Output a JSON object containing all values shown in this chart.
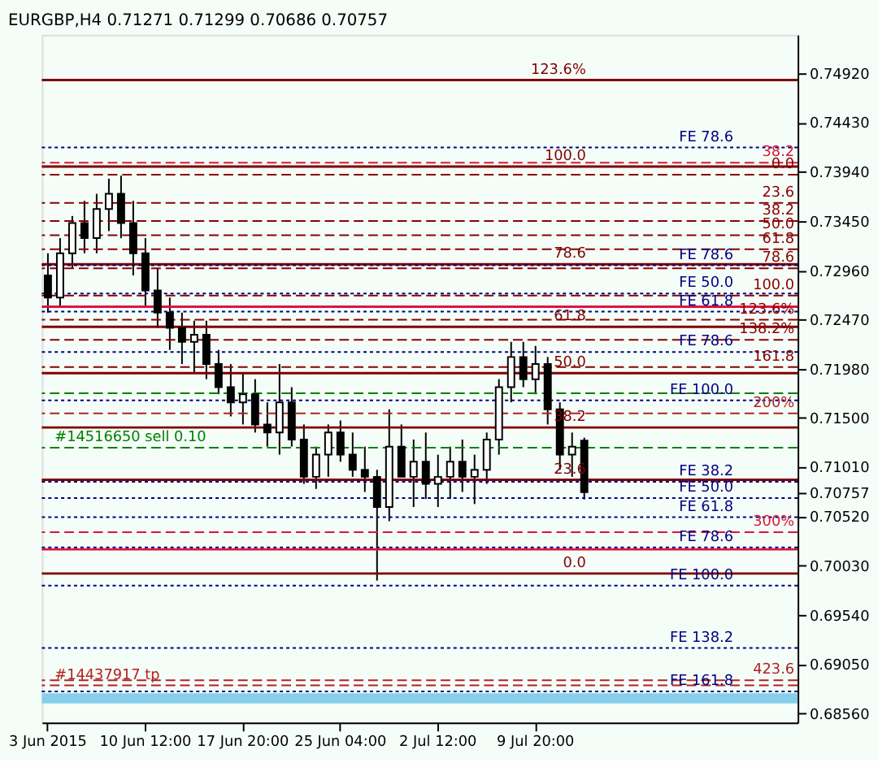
{
  "chart_data": {
    "type": "candlestick",
    "title": "EURGBP,H4 0.71271 0.71299 0.70686 0.70757",
    "categories": [
      "3 Jun 2015",
      null,
      null,
      null,
      null,
      null,
      null,
      null,
      "10 Jun 12:00",
      null,
      null,
      null,
      null,
      null,
      null,
      null,
      "17 Jun 20:00",
      null,
      null,
      null,
      null,
      null,
      null,
      null,
      "25 Jun 04:00",
      null,
      null,
      null,
      null,
      null,
      null,
      null,
      "2 Jul 12:00",
      null,
      null,
      null,
      null,
      null,
      null,
      null,
      "9 Jul 20:00",
      null,
      null,
      null,
      null,
      null,
      null,
      null,
      null,
      null,
      null,
      null,
      null,
      null,
      null,
      null,
      null,
      null,
      null,
      null,
      null,
      null
    ],
    "ohlc": [
      [
        0.7291,
        0.7313,
        0.7254,
        0.7269
      ],
      [
        0.7269,
        0.7328,
        0.7261,
        0.7313
      ],
      [
        0.7313,
        0.735,
        0.7298,
        0.7343
      ],
      [
        0.7343,
        0.7365,
        0.7313,
        0.7328
      ],
      [
        0.7328,
        0.7372,
        0.7313,
        0.7357
      ],
      [
        0.7357,
        0.7387,
        0.7335,
        0.7372
      ],
      [
        0.7372,
        0.739,
        0.7328,
        0.7343
      ],
      [
        0.7343,
        0.7365,
        0.7291,
        0.7313
      ],
      [
        0.7313,
        0.7328,
        0.7261,
        0.7276
      ],
      [
        0.7276,
        0.7298,
        0.7239,
        0.7254
      ],
      [
        0.7254,
        0.7269,
        0.7217,
        0.7239
      ],
      [
        0.7239,
        0.7254,
        0.7203,
        0.7225
      ],
      [
        0.7225,
        0.7246,
        0.7195,
        0.7232
      ],
      [
        0.7232,
        0.7246,
        0.7188,
        0.7203
      ],
      [
        0.7203,
        0.7217,
        0.7173,
        0.718
      ],
      [
        0.718,
        0.7203,
        0.7151,
        0.7165
      ],
      [
        0.7165,
        0.7195,
        0.7143,
        0.7173
      ],
      [
        0.7173,
        0.7188,
        0.7135,
        0.7143
      ],
      [
        0.7143,
        0.7165,
        0.7121,
        0.7135
      ],
      [
        0.7135,
        0.7203,
        0.7113,
        0.7165
      ],
      [
        0.7165,
        0.718,
        0.7121,
        0.7128
      ],
      [
        0.7128,
        0.7143,
        0.7084,
        0.7091
      ],
      [
        0.7091,
        0.7121,
        0.7079,
        0.7113
      ],
      [
        0.7113,
        0.7143,
        0.7091,
        0.7135
      ],
      [
        0.7135,
        0.7147,
        0.7106,
        0.7113
      ],
      [
        0.7113,
        0.7135,
        0.7091,
        0.7098
      ],
      [
        0.7098,
        0.7121,
        0.7076,
        0.7091
      ],
      [
        0.7091,
        0.7098,
        0.6988,
        0.7061
      ],
      [
        0.7061,
        0.7158,
        0.7047,
        0.7121
      ],
      [
        0.7121,
        0.7143,
        0.7091,
        0.7091
      ],
      [
        0.7091,
        0.7128,
        0.7061,
        0.7106
      ],
      [
        0.7106,
        0.7135,
        0.7069,
        0.7084
      ],
      [
        0.7084,
        0.7113,
        0.7061,
        0.7091
      ],
      [
        0.7091,
        0.7121,
        0.7069,
        0.7106
      ],
      [
        0.7106,
        0.7128,
        0.7076,
        0.7091
      ],
      [
        0.7091,
        0.7113,
        0.7064,
        0.7098
      ],
      [
        0.7098,
        0.7135,
        0.7084,
        0.7128
      ],
      [
        0.7128,
        0.7188,
        0.7113,
        0.718
      ],
      [
        0.718,
        0.7225,
        0.7165,
        0.721
      ],
      [
        0.721,
        0.7225,
        0.718,
        0.7188
      ],
      [
        0.7188,
        0.7221,
        0.7173,
        0.7203
      ],
      [
        0.7203,
        0.721,
        0.7143,
        0.7158
      ],
      [
        0.7158,
        0.7165,
        0.7098,
        0.7113
      ],
      [
        0.7113,
        0.7135,
        0.7091,
        0.7121
      ],
      [
        0.71271,
        0.71299,
        0.70686,
        0.70757
      ],
      null,
      null,
      null,
      null,
      null,
      null,
      null,
      null,
      null,
      null,
      null,
      null,
      null,
      null,
      null,
      null,
      null
    ],
    "ylim": [
      0.6847,
      0.753
    ],
    "yticks": [
      {
        "value": 0.7492,
        "label": "0.74920"
      },
      {
        "value": 0.7443,
        "label": "0.74430"
      },
      {
        "value": 0.7394,
        "label": "0.73940"
      },
      {
        "value": 0.7345,
        "label": "0.73450"
      },
      {
        "value": 0.7296,
        "label": "0.72960"
      },
      {
        "value": 0.7247,
        "label": "0.72470"
      },
      {
        "value": 0.7198,
        "label": "0.71980"
      },
      {
        "value": 0.715,
        "label": "0.71500"
      },
      {
        "value": 0.7101,
        "label": "0.71010"
      },
      {
        "value": 0.70757,
        "label": "0.70757"
      },
      {
        "value": 0.7052,
        "label": "0.70520"
      },
      {
        "value": 0.7003,
        "label": "0.70030"
      },
      {
        "value": 0.6954,
        "label": "0.69540"
      },
      {
        "value": 0.6905,
        "label": "0.69050"
      },
      {
        "value": 0.6856,
        "label": "0.68560"
      }
    ],
    "ref_lines": [
      {
        "axis": "y",
        "value": 0.7403,
        "color": "#dc143c",
        "line_style": "dashed"
      },
      {
        "axis": "y",
        "value": 0.7391,
        "color": "#8b0000",
        "line_style": "dashed"
      },
      {
        "axis": "y",
        "value": 0.7363,
        "color": "#8b0000",
        "line_style": "dashed"
      },
      {
        "axis": "y",
        "value": 0.7345,
        "color": "#8b0000",
        "line_style": "dashed"
      },
      {
        "axis": "y",
        "value": 0.7331,
        "color": "#8b0000",
        "line_style": "dashed"
      },
      {
        "axis": "y",
        "value": 0.7317,
        "color": "#8b0000",
        "line_style": "dashed"
      },
      {
        "axis": "y",
        "value": 0.7298,
        "color": "#8b0000",
        "line_style": "dashed"
      },
      {
        "axis": "y",
        "value": 0.7271,
        "color": "#8b0000",
        "line_style": "dashed"
      },
      {
        "axis": "y",
        "value": 0.7247,
        "color": "#8b0000",
        "line_style": "dashed"
      },
      {
        "axis": "y",
        "value": 0.7227,
        "color": "#8b0000",
        "line_style": "dashed"
      },
      {
        "axis": "y",
        "value": 0.72,
        "color": "#8b0000",
        "line_style": "dashed"
      },
      {
        "axis": "y",
        "value": 0.7154,
        "color": "#b22222",
        "line_style": "dashed"
      },
      {
        "axis": "y",
        "value": 0.7036,
        "color": "#dc143c",
        "line_style": "dashed"
      },
      {
        "axis": "y",
        "value": 0.6889,
        "color": "#b22222",
        "line_style": "dashed"
      },
      {
        "axis": "y",
        "value": 0.7418,
        "color": "#000080",
        "line_style": "dotted"
      },
      {
        "axis": "y",
        "value": 0.7301,
        "color": "#000080",
        "line_style": "dotted"
      },
      {
        "axis": "y",
        "value": 0.7273,
        "color": "#000080",
        "line_style": "dotted"
      },
      {
        "axis": "y",
        "value": 0.7255,
        "color": "#000080",
        "line_style": "dotted"
      },
      {
        "axis": "y",
        "value": 0.7215,
        "color": "#000080",
        "line_style": "dotted"
      },
      {
        "axis": "y",
        "value": 0.7167,
        "color": "#000080",
        "line_style": "dotted"
      },
      {
        "axis": "y",
        "value": 0.7086,
        "color": "#000080",
        "line_style": "dotted"
      },
      {
        "axis": "y",
        "value": 0.707,
        "color": "#000080",
        "line_style": "dotted"
      },
      {
        "axis": "y",
        "value": 0.7051,
        "color": "#000080",
        "line_style": "dotted"
      },
      {
        "axis": "y",
        "value": 0.7021,
        "color": "#000080",
        "line_style": "dotted"
      },
      {
        "axis": "y",
        "value": 0.6983,
        "color": "#000080",
        "line_style": "dotted"
      },
      {
        "axis": "y",
        "value": 0.6921,
        "color": "#000080",
        "line_style": "dotted"
      },
      {
        "axis": "y",
        "value": 0.6878,
        "color": "#000080",
        "line_style": "dotted"
      },
      {
        "axis": "y",
        "value": 0.7485,
        "color": "#800000",
        "line_style": "solid"
      },
      {
        "axis": "y",
        "value": 0.7399,
        "color": "#800000",
        "line_style": "solid"
      },
      {
        "axis": "y",
        "value": 0.7302,
        "color": "#800000",
        "line_style": "solid"
      },
      {
        "axis": "y",
        "value": 0.724,
        "color": "#800000",
        "line_style": "solid"
      },
      {
        "axis": "y",
        "value": 0.7194,
        "color": "#800000",
        "line_style": "solid"
      },
      {
        "axis": "y",
        "value": 0.714,
        "color": "#800000",
        "line_style": "solid"
      },
      {
        "axis": "y",
        "value": 0.7088,
        "color": "#800000",
        "line_style": "solid"
      },
      {
        "axis": "y",
        "value": 0.6995,
        "color": "#800000",
        "line_style": "solid"
      },
      {
        "axis": "y",
        "value": 0.726,
        "color": "#dc143c",
        "line_style": "solid"
      },
      {
        "axis": "y",
        "value": 0.7019,
        "color": "#dc143c",
        "line_style": "solid"
      },
      {
        "axis": "y",
        "value": 0.7174,
        "color": "#008000",
        "line_style": "dashed"
      },
      {
        "axis": "y",
        "value": 0.712,
        "label": "#14516650 sell 0.10",
        "color": "#008000",
        "line_style": "dashed"
      },
      {
        "axis": "y",
        "value": 0.6884,
        "label": "#14437917 tp",
        "color": "#b22222",
        "line_style": "dashed"
      }
    ],
    "bands": [
      {
        "axis": "y",
        "from": 0.6866,
        "to": 0.6876,
        "color": "#87ceeb"
      }
    ],
    "annotations": [
      {
        "text": "38.2",
        "y": 0.7403
      },
      {
        "text": "0.0",
        "y": 0.7391
      },
      {
        "text": "23.6",
        "y": 0.7363
      },
      {
        "text": "38.2",
        "y": 0.7345
      },
      {
        "text": "50.0",
        "y": 0.7331
      },
      {
        "text": "61.8",
        "y": 0.7317
      },
      {
        "text": "78.6",
        "y": 0.7298
      },
      {
        "text": "100.0",
        "y": 0.7271
      },
      {
        "text": "123.6%",
        "y": 0.7247
      },
      {
        "text": "138.2%",
        "y": 0.7227
      },
      {
        "text": "161.8",
        "y": 0.72
      },
      {
        "text": "200%",
        "y": 0.7154
      },
      {
        "text": "300%",
        "y": 0.7036
      },
      {
        "text": "423.6",
        "y": 0.6889
      },
      {
        "text": "FE 78.6",
        "y": 0.7418
      },
      {
        "text": "FE 78.6",
        "y": 0.7301
      },
      {
        "text": "FE 50.0",
        "y": 0.7273
      },
      {
        "text": "FE 61.8",
        "y": 0.7255
      },
      {
        "text": "FE 78.6",
        "y": 0.7215
      },
      {
        "text": "FE 100.0",
        "y": 0.7167
      },
      {
        "text": "FE 38.2",
        "y": 0.7086
      },
      {
        "text": "FE 50.0",
        "y": 0.707
      },
      {
        "text": "FE 61.8",
        "y": 0.7051
      },
      {
        "text": "FE 78.6",
        "y": 0.7021
      },
      {
        "text": "FE 100.0",
        "y": 0.6983
      },
      {
        "text": "FE 138.2",
        "y": 0.6921
      },
      {
        "text": "FE 161.8",
        "y": 0.6878
      },
      {
        "text": "123.6%",
        "y": 0.7485
      },
      {
        "text": "100.0",
        "y": 0.7399
      },
      {
        "text": "78.6",
        "y": 0.7302
      },
      {
        "text": "61.8",
        "y": 0.724
      },
      {
        "text": "50.0",
        "y": 0.7194
      },
      {
        "text": "38.2",
        "y": 0.714
      },
      {
        "text": "23.6",
        "y": 0.7088
      },
      {
        "text": "0.0",
        "y": 0.6995
      }
    ]
  }
}
